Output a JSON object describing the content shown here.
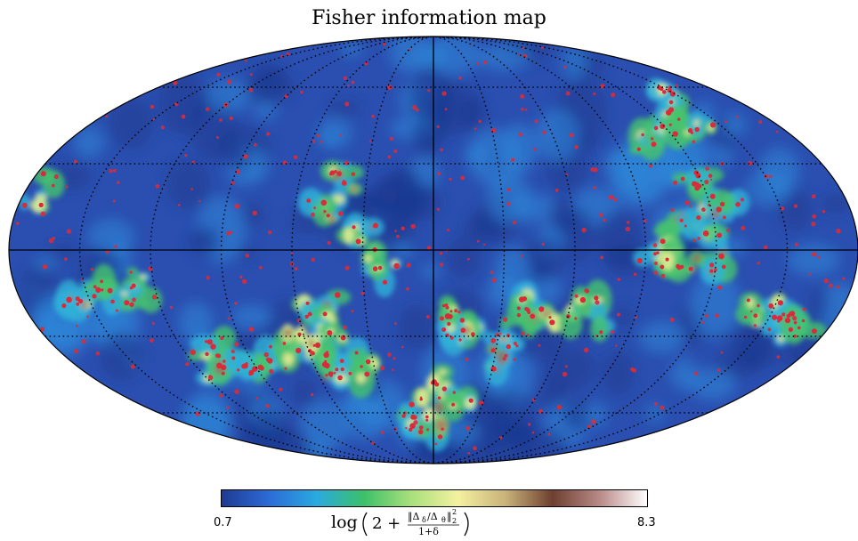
{
  "title": "Fisher information map",
  "colorbar": {
    "min_label": "0.7",
    "max_label": "8.3",
    "label_text": "log (2 + ‖Δδ/Δθ‖₂² / (1+δ))",
    "stops": [
      "#1f3a93",
      "#2c6bd6",
      "#2aa9e0",
      "#3cc06a",
      "#a8e07a",
      "#f4f1a0",
      "#c9b37a",
      "#6e4030",
      "#b88a88",
      "#ffffff"
    ]
  },
  "map": {
    "projection": "mollweide",
    "graticule_style": "dotted",
    "background_color": "#2a4fb0",
    "marker_color": "#d92b3a"
  }
}
